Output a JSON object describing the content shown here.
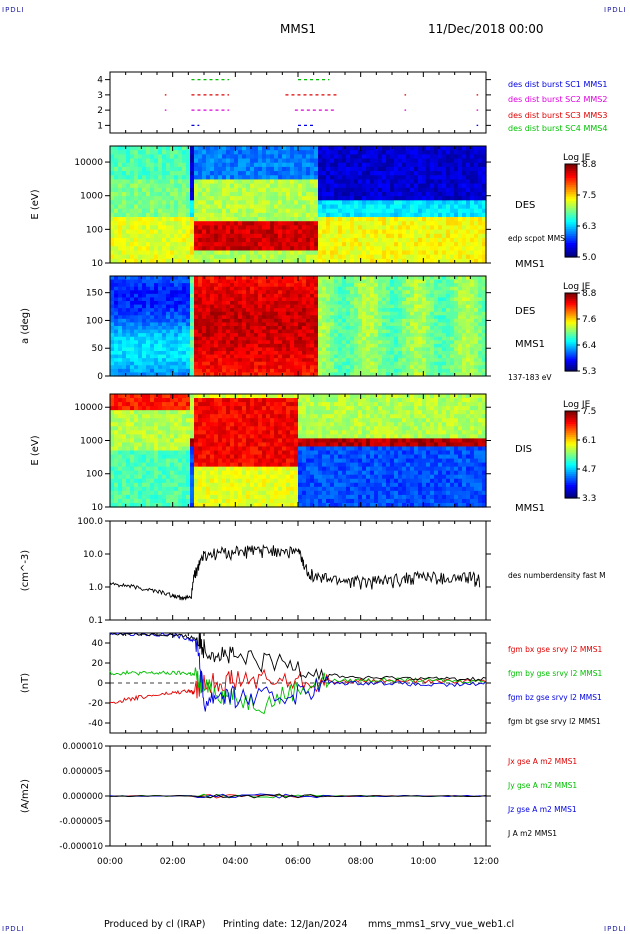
{
  "header": {
    "corner_label": "IPDLI",
    "spacecraft": "MMS1",
    "date": "11/Dec/2018 00:00"
  },
  "footer": {
    "produced_by": "Produced by cl (IRAP)",
    "printing_date": "Printing date: 12/Jan/2024",
    "filename": "mms_mms1_srvy_vue_web1.cl"
  },
  "colors": {
    "red": "#e00000",
    "green": "#00c000",
    "blue": "#0000e0",
    "magenta": "#e000e0",
    "black": "#000000",
    "label_blue": "#0000c0"
  },
  "chart_data": [
    {
      "type": "scatter",
      "panel": "burst-availability",
      "ylim": [
        0.5,
        4.5
      ],
      "ytick_labels": [
        "1",
        "2",
        "3",
        "4"
      ],
      "legend_placement": "right",
      "series": [
        {
          "name": "des dist burst SC1 MMS1",
          "level": 1,
          "color": "#0000e0",
          "segments": [
            [
              2.6,
              2.85
            ],
            [
              6.0,
              6.5
            ],
            [
              11.7,
              11.75
            ]
          ]
        },
        {
          "name": "des dist burst SC2 MMS2",
          "level": 2,
          "color": "#e000e0",
          "segments": [
            [
              1.75,
              1.8
            ],
            [
              2.6,
              3.8
            ],
            [
              5.9,
              7.2
            ],
            [
              9.4,
              9.45
            ],
            [
              11.7,
              11.75
            ]
          ]
        },
        {
          "name": "des dist burst SC3 MMS3",
          "level": 3,
          "color": "#e00000",
          "segments": [
            [
              1.75,
              1.8
            ],
            [
              2.6,
              3.8
            ],
            [
              5.6,
              7.3
            ],
            [
              9.4,
              9.45
            ],
            [
              11.7,
              11.75
            ]
          ]
        },
        {
          "name": "des dist burst SC4 MMS4",
          "level": 4,
          "color": "#00c000",
          "segments": [
            [
              2.6,
              3.8
            ],
            [
              6.0,
              7.0
            ]
          ]
        }
      ]
    },
    {
      "type": "heatmap",
      "panel": "des-energy-spectrogram",
      "ylabel": "E (eV)",
      "yscale": "log",
      "ylim": [
        10,
        30000
      ],
      "ytick_labels": [
        "10",
        "100",
        "1000",
        "10000"
      ],
      "right_labels": [
        "DES",
        "edp scpot MMS1",
        "MMS1"
      ],
      "colorbar": {
        "title": "Log JE",
        "ticks": [
          "8.8",
          "7.5",
          "6.3",
          "5.0"
        ],
        "range": [
          5.0,
          8.8
        ]
      }
    },
    {
      "type": "heatmap",
      "panel": "des-pitch-angle",
      "ylabel": "a (deg)",
      "ylim": [
        0,
        180
      ],
      "ytick_labels": [
        "0",
        "50",
        "100",
        "150"
      ],
      "right_labels": [
        "DES",
        "MMS1",
        "137-183 eV"
      ],
      "colorbar": {
        "title": "Log JE",
        "ticks": [
          "8.8",
          "7.6",
          "6.4",
          "5.3"
        ],
        "range": [
          5.3,
          8.8
        ]
      }
    },
    {
      "type": "heatmap",
      "panel": "dis-energy-spectrogram",
      "ylabel": "E (eV)",
      "yscale": "log",
      "ylim": [
        10,
        25000
      ],
      "ytick_labels": [
        "10",
        "100",
        "1000",
        "10000"
      ],
      "right_labels": [
        "DIS",
        "MMS1"
      ],
      "colorbar": {
        "title": "Log JE",
        "ticks": [
          "7.5",
          "6.1",
          "4.7",
          "3.3"
        ],
        "range": [
          3.3,
          7.5
        ]
      }
    },
    {
      "type": "line",
      "panel": "des-numberdensity",
      "ylabel": "(cm^-3)",
      "yscale": "log",
      "ylim": [
        0.1,
        100.0
      ],
      "ytick_labels": [
        "0.1",
        "1.0",
        "10.0",
        "100.0"
      ],
      "series": [
        {
          "name": "des numberdensity fast M",
          "color": "#000000",
          "x": [
            0.0,
            0.5,
            1.0,
            1.5,
            2.0,
            2.3,
            2.6,
            2.8,
            3.0,
            3.5,
            4.0,
            4.5,
            5.0,
            5.5,
            6.0,
            6.2,
            6.5,
            7.0,
            7.5,
            8.0,
            8.5,
            9.0,
            9.5,
            10.0,
            10.5,
            11.0,
            11.5,
            11.8
          ],
          "y": [
            1.3,
            1.1,
            0.9,
            0.75,
            0.55,
            0.45,
            0.5,
            4.0,
            9.0,
            11.0,
            12.0,
            13.0,
            12.5,
            13.0,
            12.0,
            4.0,
            2.0,
            1.8,
            1.6,
            1.5,
            1.5,
            1.6,
            2.0,
            2.2,
            1.9,
            1.8,
            2.0,
            1.7
          ]
        }
      ]
    },
    {
      "type": "line",
      "panel": "fgm-magnetic-field",
      "ylabel": "(nT)",
      "ylim": [
        -50,
        50
      ],
      "ytick_labels": [
        "-40",
        "-20",
        "0",
        "20",
        "40"
      ],
      "series": [
        {
          "name": "fgm bx gse srvy l2 MMS1",
          "color": "#e00000",
          "x": [
            0.0,
            0.5,
            1.0,
            1.5,
            2.0,
            2.5,
            2.7,
            3.0,
            3.5,
            4.0,
            5.0,
            6.0,
            7.0,
            8.0,
            9.0,
            10.0,
            11.0,
            12.0
          ],
          "y": [
            -20,
            -17,
            -14,
            -12,
            -10,
            -8,
            -10,
            0,
            2,
            3,
            2,
            2,
            1,
            2,
            2,
            2,
            2,
            2
          ]
        },
        {
          "name": "fgm by gse srvy l2 MMS1",
          "color": "#00c000",
          "x": [
            0.0,
            0.5,
            1.0,
            1.5,
            2.0,
            2.5,
            2.7,
            3.0,
            3.5,
            4.0,
            5.0,
            6.0,
            7.0,
            8.0,
            9.0,
            10.0,
            11.0,
            12.0
          ],
          "y": [
            10,
            10,
            10,
            10,
            10,
            10,
            8,
            -5,
            -10,
            -15,
            -20,
            -5,
            2,
            3,
            3,
            3,
            2,
            2
          ]
        },
        {
          "name": "fgm bz gse srvy l2 MMS1",
          "color": "#0000e0",
          "x": [
            0.0,
            1.0,
            2.0,
            2.5,
            2.8,
            3.0,
            3.5,
            4.0,
            5.0,
            6.0,
            7.0,
            8.0,
            9.0,
            10.0,
            11.0,
            12.0
          ],
          "y": [
            50,
            49,
            48,
            45,
            40,
            -20,
            -10,
            -15,
            -15,
            -10,
            0,
            0,
            0,
            -2,
            -2,
            0
          ]
        },
        {
          "name": "fgm bt gse srvy l2 MMS1",
          "color": "#000000",
          "x": [
            0.0,
            1.0,
            2.0,
            2.5,
            2.8,
            3.0,
            3.5,
            4.0,
            5.0,
            6.0,
            7.0,
            8.0,
            9.0,
            10.0,
            11.0,
            12.0
          ],
          "y": [
            50,
            49,
            48,
            46,
            45,
            35,
            30,
            25,
            20,
            18,
            8,
            5,
            5,
            5,
            4,
            4
          ]
        }
      ]
    },
    {
      "type": "line",
      "panel": "current-density",
      "ylabel": "(A/m2)",
      "ylim": [
        -1e-05,
        1e-05
      ],
      "ytick_labels": [
        "0.000010",
        "0.000005",
        "0.000000",
        "-0.000005",
        "-0.000010"
      ],
      "series": [
        {
          "name": "Jx gse A m2 MMS1",
          "color": "#e00000",
          "x": [
            0,
            12
          ],
          "y": [
            0,
            0
          ]
        },
        {
          "name": "Jy gse A m2 MMS1",
          "color": "#00c000",
          "x": [
            0,
            12
          ],
          "y": [
            0,
            0
          ]
        },
        {
          "name": "Jz gse A m2 MMS1",
          "color": "#0000e0",
          "x": [
            0,
            12
          ],
          "y": [
            0,
            0
          ]
        },
        {
          "name": "J A m2 MMS1",
          "color": "#000000",
          "x": [
            0,
            12
          ],
          "y": [
            0,
            0
          ]
        }
      ]
    }
  ],
  "time_axis": {
    "xlim": [
      0,
      12
    ],
    "tick_labels": [
      "00:00",
      "02:00",
      "04:00",
      "06:00",
      "08:00",
      "10:00",
      "12:00"
    ]
  }
}
